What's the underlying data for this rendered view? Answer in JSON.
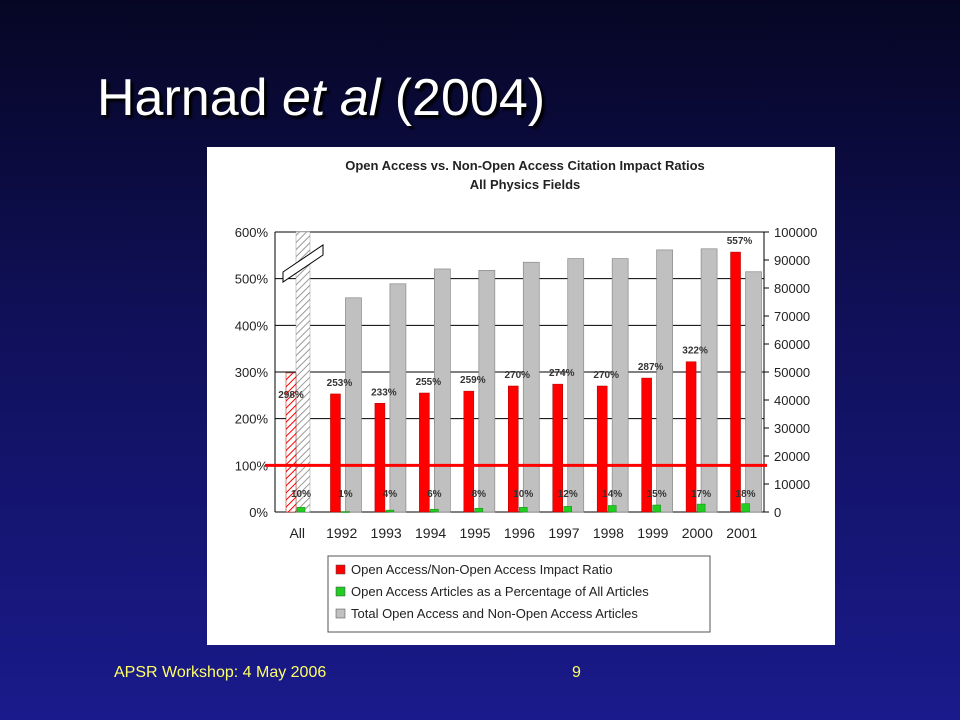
{
  "slide": {
    "title_main": "Harnad ",
    "title_italic": "et al",
    "title_tail": " (2004)",
    "footer_left": "APSR Workshop: 4 May 2006",
    "page_number": "9"
  },
  "colors": {
    "background": "#10105a",
    "title_text": "#ffffff",
    "footer_text": "#ffff66",
    "ratio_bar": "#ff0000",
    "percent_bar": "#22cc22",
    "total_bar": "#c0c0c0",
    "baseline": "#ff0000"
  },
  "chart_data": {
    "type": "bar",
    "title": "Open Access vs. Non-Open Access Citation Impact Ratios",
    "subtitle": "All Physics Fields",
    "categories": [
      "All",
      "1992",
      "1993",
      "1994",
      "1995",
      "1996",
      "1997",
      "1998",
      "1999",
      "2000",
      "2001"
    ],
    "series": [
      {
        "name": "Open Access/Non-Open Access Impact Ratio",
        "axis": "left",
        "values": [
          298,
          253,
          233,
          255,
          259,
          270,
          274,
          270,
          287,
          322,
          557
        ],
        "labels": [
          "298%",
          "253%",
          "233%",
          "255%",
          "259%",
          "270%",
          "274%",
          "270%",
          "287%",
          "322%",
          "557%"
        ]
      },
      {
        "name": "Open Access Articles as a Percentage of All Articles",
        "axis": "left",
        "values": [
          10,
          1,
          4,
          6,
          8,
          10,
          12,
          14,
          15,
          17,
          18
        ],
        "labels": [
          "10%",
          "1%",
          "4%",
          "6%",
          "8%",
          "10%",
          "12%",
          "14%",
          "15%",
          "17%",
          "18%"
        ]
      },
      {
        "name": "Total Open Access and Non-Open Access Articles",
        "axis": "right",
        "values": [
          null,
          76500,
          81500,
          86800,
          86300,
          89200,
          90500,
          90500,
          93600,
          94000,
          85800
        ]
      }
    ],
    "left_axis": {
      "ylim": [
        0,
        600
      ],
      "ticks": [
        "0%",
        "100%",
        "200%",
        "300%",
        "400%",
        "500%",
        "600%"
      ]
    },
    "right_axis": {
      "ylim": [
        0,
        100000
      ],
      "ticks": [
        "0",
        "10000",
        "20000",
        "30000",
        "40000",
        "50000",
        "60000",
        "70000",
        "80000",
        "90000",
        "100000"
      ]
    },
    "reference_line": 100,
    "broken_bar": "All",
    "grid": true,
    "legend_position": "bottom"
  }
}
